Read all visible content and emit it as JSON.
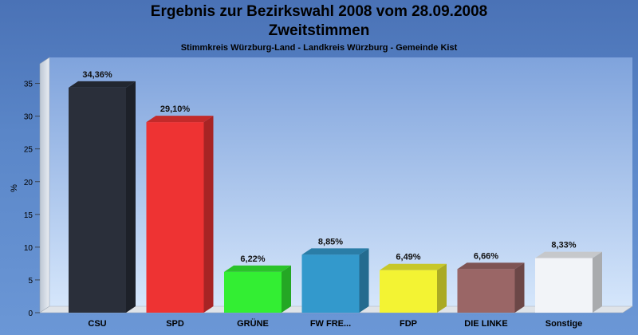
{
  "chart_data": {
    "type": "bar",
    "title": "Ergebnis zur Bezirkswahl 2008 vom 28.09.2008",
    "subtitle": "Zweitstimmen",
    "subtitle2": "Stimmkreis Würzburg-Land - Landkreis Würzburg - Gemeinde Kist",
    "ylabel": "%",
    "ylim": [
      0,
      38
    ],
    "yticks": [
      0,
      5,
      10,
      15,
      20,
      25,
      30,
      35
    ],
    "categories": [
      "CSU",
      "SPD",
      "GRÜNE",
      "FW FRE...",
      "FDP",
      "DIE LINKE",
      "Sonstige"
    ],
    "values": [
      34.36,
      29.1,
      6.22,
      8.85,
      6.49,
      6.66,
      8.33
    ],
    "value_labels": [
      "34,36%",
      "29,10%",
      "6,22%",
      "8,85%",
      "6,49%",
      "6,66%",
      "8,33%"
    ],
    "colors": [
      "#2a2f3a",
      "#ee3333",
      "#33ee33",
      "#3399cc",
      "#f3f333",
      "#9a6666",
      "#f2f4f8"
    ],
    "grid": false
  }
}
